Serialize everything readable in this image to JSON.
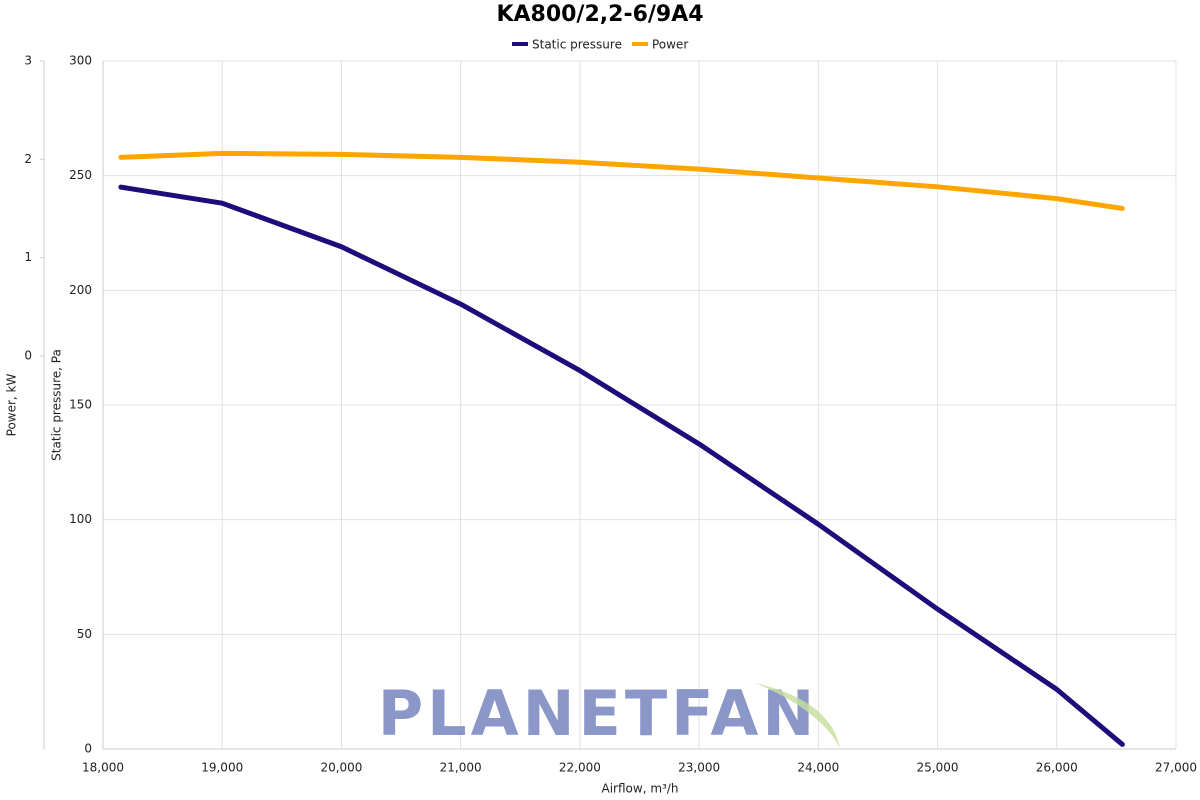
{
  "chart_data": {
    "type": "line",
    "title": "KA800/2,2-6/9A4",
    "x_label": "Airflow, m³/h",
    "y_label": "Static pressure, Pa",
    "y2_label": "Power, kW",
    "watermark": "PLANETFAN",
    "x": [
      18150,
      19000,
      20000,
      21000,
      22000,
      23000,
      24000,
      25000,
      26000,
      26550
    ],
    "series": [
      {
        "name": "Static pressure",
        "color": "#1f0c7a",
        "values": [
          245,
          238,
          219,
          194,
          165,
          133,
          98,
          61,
          26,
          2
        ]
      },
      {
        "name": "Power",
        "color": "#ffa500",
        "axis": "y2",
        "values": [
          2.02,
          2.06,
          2.05,
          2.02,
          1.97,
          1.9,
          1.81,
          1.72,
          1.6,
          1.5
        ]
      }
    ],
    "xlim": [
      18000,
      27000
    ],
    "xticks": [
      {
        "value": 18000,
        "label": "18,000"
      },
      {
        "value": 19000,
        "label": "19,000"
      },
      {
        "value": 20000,
        "label": "20,000"
      },
      {
        "value": 21000,
        "label": "21,000"
      },
      {
        "value": 22000,
        "label": "22,000"
      },
      {
        "value": 23000,
        "label": "23,000"
      },
      {
        "value": 24000,
        "label": "24,000"
      },
      {
        "value": 25000,
        "label": "25,000"
      },
      {
        "value": 26000,
        "label": "26,000"
      },
      {
        "value": 27000,
        "label": "27,000"
      }
    ],
    "ylim": [
      0,
      300
    ],
    "yticks": [
      0,
      50,
      100,
      150,
      200,
      250,
      300
    ],
    "y2lim": [
      -4,
      3
    ],
    "y2ticks": [
      0,
      1,
      2,
      3
    ],
    "grid": true
  }
}
